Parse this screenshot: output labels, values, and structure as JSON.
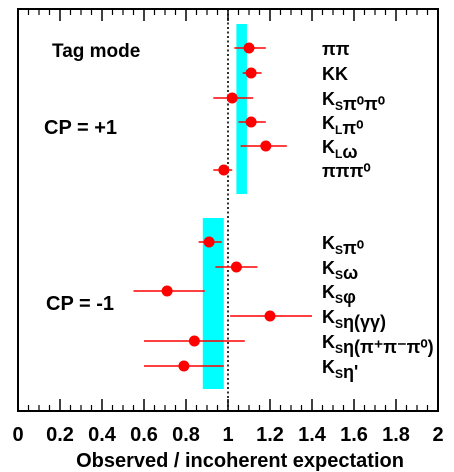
{
  "chart_data": {
    "type": "scatter",
    "title": "",
    "xlabel": "Observed / incoherent expectation",
    "ylabel": "",
    "xlim": [
      0,
      2
    ],
    "xticks": [
      "0",
      "0.2",
      "0.4",
      "0.6",
      "0.8",
      "1",
      "1.2",
      "1.4",
      "1.6",
      "1.8",
      "2"
    ],
    "xtick_values": [
      0,
      0.2,
      0.4,
      0.6,
      0.8,
      1.0,
      1.2,
      1.4,
      1.6,
      1.8,
      2.0
    ],
    "reference_line": 1.0,
    "marker_color": "#ff0000",
    "band_color": "#00ffff",
    "annotations": [
      "Tag mode",
      "CP = +1",
      "CP = -1"
    ],
    "groups": [
      {
        "label": "CP = +1",
        "band": [
          1.04,
          1.09
        ],
        "points": [
          {
            "mode": "ππ",
            "value": 1.1,
            "err": [
              1.03,
              1.18
            ]
          },
          {
            "mode": "KK",
            "value": 1.11,
            "err": [
              1.07,
              1.16
            ]
          },
          {
            "mode": "K_Sπ⁰π⁰",
            "value": 1.02,
            "err": [
              0.93,
              1.12
            ]
          },
          {
            "mode": "K_Lπ⁰",
            "value": 1.11,
            "err": [
              1.05,
              1.18
            ]
          },
          {
            "mode": "K_Lω",
            "value": 1.18,
            "err": [
              1.06,
              1.28
            ]
          },
          {
            "mode": "πππ⁰",
            "value": 0.98,
            "err": [
              0.93,
              1.02
            ]
          }
        ]
      },
      {
        "label": "CP = -1",
        "band": [
          0.88,
          0.98
        ],
        "points": [
          {
            "mode": "K_Sπ⁰",
            "value": 0.91,
            "err": [
              0.86,
              0.97
            ]
          },
          {
            "mode": "K_Sω",
            "value": 1.04,
            "err": [
              0.94,
              1.14
            ]
          },
          {
            "mode": "K_Sφ",
            "value": 0.71,
            "err": [
              0.55,
              0.89
            ]
          },
          {
            "mode": "K_Sη(γγ)",
            "value": 1.2,
            "err": [
              1.01,
              1.4
            ]
          },
          {
            "mode": "K_Sη(π⁺π⁻π⁰)",
            "value": 0.84,
            "err": [
              0.6,
              1.08
            ]
          },
          {
            "mode": "K_Sη'",
            "value": 0.79,
            "err": [
              0.6,
              0.98
            ]
          }
        ]
      }
    ]
  }
}
